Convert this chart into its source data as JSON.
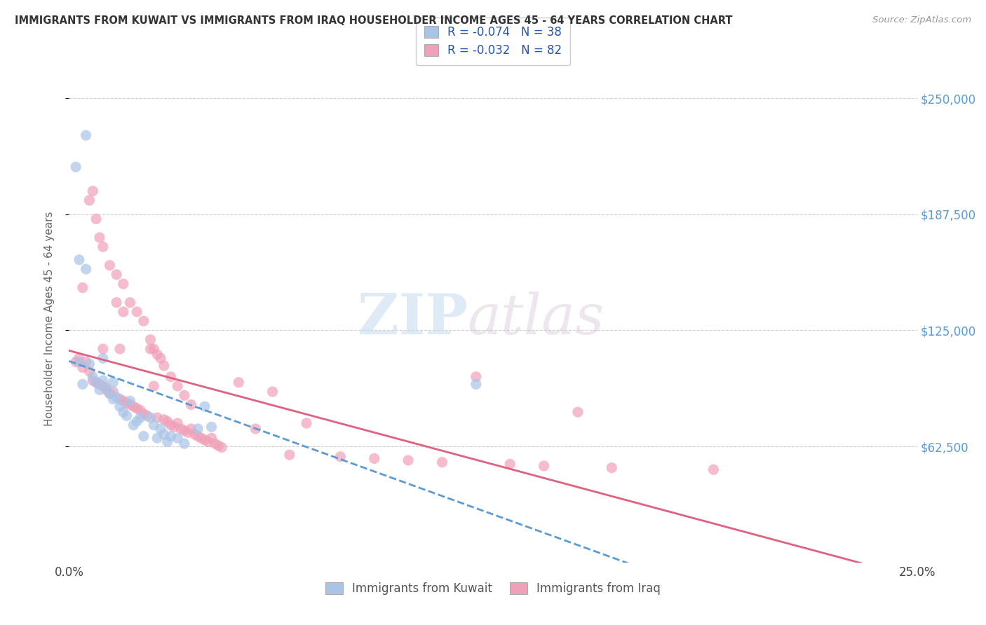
{
  "title": "IMMIGRANTS FROM KUWAIT VS IMMIGRANTS FROM IRAQ HOUSEHOLDER INCOME AGES 45 - 64 YEARS CORRELATION CHART",
  "source": "Source: ZipAtlas.com",
  "ylabel": "Householder Income Ages 45 - 64 years",
  "ytick_labels": [
    "$62,500",
    "$125,000",
    "$187,500",
    "$250,000"
  ],
  "ytick_values": [
    62500,
    125000,
    187500,
    250000
  ],
  "ymin": 0,
  "ymax": 262500,
  "xmin": 0.0,
  "xmax": 0.25,
  "kuwait_color": "#aac4e8",
  "iraq_color": "#f0a0b8",
  "kuwait_R": "-0.074",
  "kuwait_N": "38",
  "iraq_R": "-0.032",
  "iraq_N": "82",
  "legend_label_kuwait": "Immigrants from Kuwait",
  "legend_label_iraq": "Immigrants from Iraq",
  "watermark_zip": "ZIP",
  "watermark_atlas": "atlas",
  "trendline_color_kuwait": "#5b9bd5",
  "trendline_color_iraq": "#e06080",
  "grid_color": "#d0d0d0",
  "right_axis_color": "#5b9bd5",
  "background_color": "#ffffff",
  "kuwait_x": [
    0.002,
    0.003,
    0.004,
    0.005,
    0.006,
    0.007,
    0.008,
    0.009,
    0.01,
    0.01,
    0.011,
    0.012,
    0.013,
    0.013,
    0.014,
    0.015,
    0.016,
    0.017,
    0.018,
    0.019,
    0.02,
    0.021,
    0.022,
    0.024,
    0.025,
    0.026,
    0.027,
    0.028,
    0.029,
    0.03,
    0.032,
    0.034,
    0.038,
    0.04,
    0.042,
    0.12,
    0.005,
    0.003
  ],
  "kuwait_y": [
    213000,
    108000,
    96000,
    158000,
    107000,
    100000,
    97000,
    93000,
    98000,
    110000,
    94000,
    91000,
    88000,
    97000,
    89000,
    84000,
    81000,
    79000,
    87000,
    74000,
    76000,
    78000,
    68000,
    78000,
    74000,
    67000,
    72000,
    69000,
    65000,
    68000,
    67000,
    64000,
    72000,
    84000,
    73000,
    96000,
    230000,
    163000
  ],
  "iraq_x": [
    0.002,
    0.003,
    0.004,
    0.004,
    0.005,
    0.006,
    0.007,
    0.008,
    0.009,
    0.01,
    0.01,
    0.011,
    0.012,
    0.013,
    0.014,
    0.015,
    0.015,
    0.016,
    0.017,
    0.018,
    0.019,
    0.02,
    0.021,
    0.022,
    0.023,
    0.024,
    0.025,
    0.025,
    0.026,
    0.027,
    0.028,
    0.029,
    0.03,
    0.031,
    0.032,
    0.033,
    0.034,
    0.035,
    0.036,
    0.037,
    0.038,
    0.039,
    0.04,
    0.041,
    0.042,
    0.043,
    0.044,
    0.045,
    0.05,
    0.055,
    0.06,
    0.065,
    0.07,
    0.08,
    0.09,
    0.1,
    0.11,
    0.12,
    0.13,
    0.14,
    0.15,
    0.16,
    0.19,
    0.006,
    0.007,
    0.008,
    0.009,
    0.01,
    0.012,
    0.014,
    0.016,
    0.018,
    0.02,
    0.022,
    0.024,
    0.026,
    0.028,
    0.03,
    0.032,
    0.034,
    0.036,
    0.016
  ],
  "iraq_y": [
    108000,
    110000,
    105000,
    148000,
    108000,
    103000,
    98000,
    97000,
    96000,
    95000,
    115000,
    93000,
    91000,
    92000,
    140000,
    88000,
    115000,
    87000,
    86000,
    85000,
    84000,
    83000,
    82000,
    80000,
    79000,
    115000,
    115000,
    95000,
    78000,
    110000,
    77000,
    76000,
    74000,
    73000,
    75000,
    72000,
    71000,
    70000,
    72000,
    69000,
    68000,
    67000,
    66000,
    65000,
    67000,
    64000,
    63000,
    62000,
    97000,
    72000,
    92000,
    58000,
    75000,
    57000,
    56000,
    55000,
    54000,
    100000,
    53000,
    52000,
    81000,
    51000,
    50000,
    195000,
    200000,
    185000,
    175000,
    170000,
    160000,
    155000,
    150000,
    140000,
    135000,
    130000,
    120000,
    112000,
    106000,
    100000,
    95000,
    90000,
    85000,
    135000
  ]
}
